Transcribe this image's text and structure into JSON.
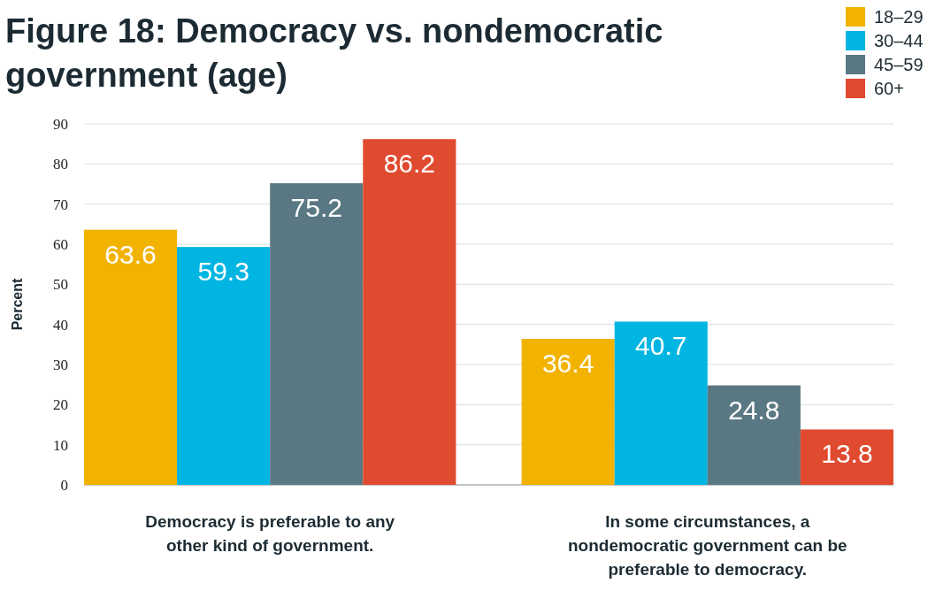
{
  "chart_data": {
    "type": "bar",
    "title": "Figure 18: Democracy vs. nondemocratic government (age)",
    "ylabel": "Percent",
    "categories": [
      "Democracy is preferable to any other kind of government.",
      "In some circumstances, a nondemocratic government can be preferable to democracy."
    ],
    "series": [
      {
        "name": "18–29",
        "color": "#f2b300",
        "values": [
          63.6,
          36.4
        ]
      },
      {
        "name": "30–44",
        "color": "#00b5e2",
        "values": [
          59.3,
          40.7
        ]
      },
      {
        "name": "45–59",
        "color": "#5a7883",
        "values": [
          75.2,
          24.8
        ]
      },
      {
        "name": "60+",
        "color": "#e04a2f",
        "values": [
          86.2,
          13.8
        ]
      }
    ],
    "ylim": [
      0,
      90
    ],
    "yticks": [
      0,
      10,
      20,
      30,
      40,
      50,
      60,
      70,
      80,
      90
    ],
    "grid": "y",
    "legend": "top right",
    "data_labels": true
  }
}
